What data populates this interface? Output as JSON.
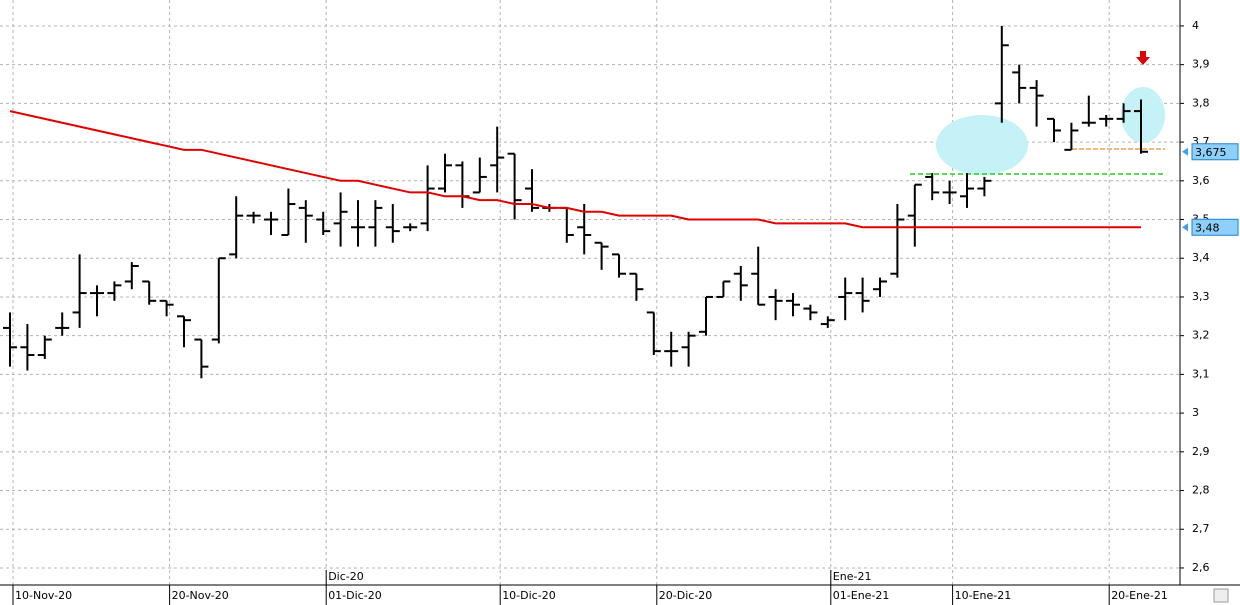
{
  "chart_data": {
    "type": "ohlc",
    "color": "#000000",
    "grid": true,
    "ylim": [
      2.556,
      4.067
    ],
    "yticks": [
      {
        "value": 2.6,
        "label": "2,6"
      },
      {
        "value": 2.7,
        "label": "2,7"
      },
      {
        "value": 2.8,
        "label": "2,8"
      },
      {
        "value": 2.9,
        "label": "2,9"
      },
      3,
      {
        "value": 3.1,
        "label": "3,1"
      },
      {
        "value": 3.2,
        "label": "3,2"
      },
      {
        "value": 3.3,
        "label": "3,3"
      },
      {
        "value": 3.4,
        "label": "3,4"
      },
      {
        "value": 3.5,
        "label": "3,5"
      },
      {
        "value": 3.6,
        "label": "3,6"
      },
      {
        "value": 3.7,
        "label": "3,7"
      },
      {
        "value": 3.8,
        "label": "3,8"
      },
      {
        "value": 3.9,
        "label": "3,9"
      },
      4
    ],
    "categories": [
      "10-Nov-20",
      null,
      null,
      null,
      null,
      null,
      null,
      null,
      null,
      "20-Nov-20",
      null,
      null,
      null,
      null,
      null,
      null,
      null,
      null,
      "01-Dic-20",
      null,
      null,
      null,
      null,
      null,
      null,
      null,
      null,
      null,
      "10-Dic-20",
      null,
      null,
      null,
      null,
      null,
      null,
      null,
      null,
      "20-Dic-20",
      null,
      null,
      null,
      null,
      null,
      null,
      null,
      null,
      null,
      "01-Ene-21",
      null,
      null,
      null,
      null,
      null,
      null,
      "10-Ene-21",
      null,
      null,
      null,
      null,
      null,
      null,
      null,
      null,
      "20-Ene-21",
      null,
      null
    ],
    "months": [
      null,
      null,
      null,
      null,
      null,
      null,
      null,
      null,
      null,
      null,
      null,
      null,
      null,
      null,
      null,
      null,
      null,
      null,
      "Dic-20",
      null,
      null,
      null,
      null,
      null,
      null,
      null,
      null,
      null,
      null,
      null,
      null,
      null,
      null,
      null,
      null,
      null,
      null,
      null,
      null,
      null,
      null,
      null,
      null,
      null,
      null,
      null,
      null,
      "Ene-21",
      null,
      null,
      null,
      null,
      null,
      null,
      null,
      null,
      null,
      null,
      null,
      null,
      null,
      null,
      null,
      null,
      null,
      null
    ],
    "open": [
      3.22,
      3.17,
      3.15,
      3.22,
      3.26,
      3.31,
      3.31,
      3.34,
      3.34,
      3.29,
      3.25,
      3.19,
      3.19,
      3.41,
      3.51,
      3.5,
      3.46,
      3.53,
      3.5,
      3.49,
      3.48,
      3.48,
      3.48,
      3.48,
      3.49,
      3.58,
      3.64,
      3.57,
      3.64,
      3.67,
      3.58,
      3.53,
      3.53,
      3.48,
      3.44,
      3.41,
      3.36,
      3.26,
      3.16,
      3.17,
      3.21,
      3.3,
      3.36,
      3.36,
      3.3,
      3.29,
      3.27,
      3.23,
      3.3,
      3.31,
      3.32,
      3.36,
      3.51,
      3.61,
      3.57,
      3.56,
      3.58,
      3.8,
      3.88,
      3.84,
      3.76,
      3.68,
      3.75,
      3.76,
      3.76,
      3.78
    ],
    "high": [
      3.26,
      3.23,
      3.2,
      3.26,
      3.41,
      3.33,
      3.34,
      3.39,
      3.34,
      3.29,
      3.25,
      3.19,
      3.4,
      3.56,
      3.52,
      3.52,
      3.58,
      3.55,
      3.52,
      3.57,
      3.55,
      3.55,
      3.54,
      3.49,
      3.64,
      3.67,
      3.65,
      3.66,
      3.74,
      3.67,
      3.63,
      3.54,
      3.53,
      3.54,
      3.44,
      3.41,
      3.36,
      3.26,
      3.21,
      3.21,
      3.3,
      3.34,
      3.38,
      3.43,
      3.32,
      3.31,
      3.28,
      3.25,
      3.35,
      3.35,
      3.35,
      3.54,
      3.59,
      3.62,
      3.6,
      3.62,
      3.61,
      4.0,
      3.9,
      3.86,
      3.76,
      3.75,
      3.82,
      3.77,
      3.8,
      3.81
    ],
    "low": [
      3.12,
      3.11,
      3.14,
      3.2,
      3.22,
      3.25,
      3.29,
      3.32,
      3.28,
      3.25,
      3.17,
      3.09,
      3.18,
      3.4,
      3.49,
      3.46,
      3.46,
      3.44,
      3.46,
      3.43,
      3.43,
      3.43,
      3.44,
      3.47,
      3.47,
      3.57,
      3.53,
      3.57,
      3.57,
      3.5,
      3.52,
      3.52,
      3.44,
      3.41,
      3.37,
      3.35,
      3.29,
      3.15,
      3.12,
      3.12,
      3.2,
      3.3,
      3.29,
      3.28,
      3.24,
      3.25,
      3.24,
      3.22,
      3.24,
      3.26,
      3.3,
      3.35,
      3.43,
      3.55,
      3.54,
      3.53,
      3.56,
      3.75,
      3.8,
      3.74,
      3.7,
      3.68,
      3.74,
      3.74,
      3.75,
      3.67
    ],
    "close": [
      3.17,
      3.15,
      3.19,
      3.22,
      3.31,
      3.31,
      3.33,
      3.38,
      3.29,
      3.28,
      3.24,
      3.12,
      3.4,
      3.51,
      3.51,
      3.5,
      3.54,
      3.51,
      3.47,
      3.52,
      3.48,
      3.53,
      3.47,
      3.48,
      3.58,
      3.64,
      3.56,
      3.61,
      3.66,
      3.55,
      3.53,
      3.53,
      3.46,
      3.46,
      3.43,
      3.36,
      3.32,
      3.16,
      3.16,
      3.2,
      3.3,
      3.34,
      3.33,
      3.28,
      3.29,
      3.28,
      3.26,
      3.24,
      3.31,
      3.29,
      3.34,
      3.5,
      3.59,
      3.57,
      3.57,
      3.58,
      3.6,
      3.95,
      3.84,
      3.82,
      3.73,
      3.73,
      3.75,
      3.76,
      3.78,
      3.675
    ],
    "moving_average": {
      "color": "#e00000",
      "values": [
        3.78,
        3.77,
        3.76,
        3.75,
        3.74,
        3.73,
        3.72,
        3.71,
        3.7,
        3.69,
        3.68,
        3.68,
        3.67,
        3.66,
        3.65,
        3.64,
        3.63,
        3.62,
        3.61,
        3.6,
        3.6,
        3.59,
        3.58,
        3.57,
        3.57,
        3.56,
        3.56,
        3.55,
        3.55,
        3.54,
        3.54,
        3.53,
        3.53,
        3.52,
        3.52,
        3.51,
        3.51,
        3.51,
        3.51,
        3.5,
        3.5,
        3.5,
        3.5,
        3.5,
        3.49,
        3.49,
        3.49,
        3.49,
        3.49,
        3.48,
        3.48,
        3.48,
        3.48,
        3.48,
        3.48,
        3.48,
        3.48,
        3.48,
        3.48,
        3.48,
        3.48,
        3.48,
        3.48,
        3.48,
        3.48,
        3.48
      ]
    },
    "price_tags": [
      {
        "value": 3.675,
        "label": "3,675"
      },
      {
        "value": 3.48,
        "label": "3,48"
      }
    ]
  }
}
